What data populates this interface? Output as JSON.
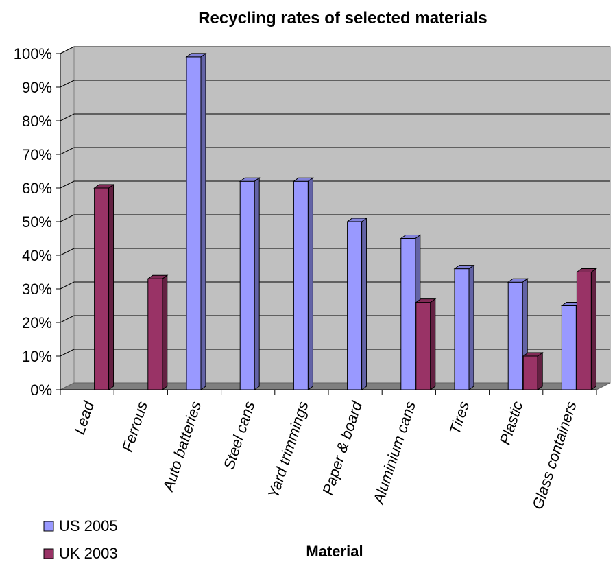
{
  "chart_data": {
    "type": "bar",
    "title": "Recycling rates of selected materials",
    "xlabel": "Material",
    "ylabel": "",
    "ylim": [
      0,
      100
    ],
    "y_ticks": [
      "0%",
      "10%",
      "20%",
      "30%",
      "40%",
      "50%",
      "60%",
      "70%",
      "80%",
      "90%",
      "100%"
    ],
    "grid": true,
    "style": "3d-clustered-column",
    "legend_position": "bottom-left",
    "categories": [
      "Lead",
      "Ferrous",
      "Auto batteries",
      "Steel cans",
      "Yard trimmings",
      "Paper & board",
      "Aluminium cans",
      "Tires",
      "Plastic",
      "Glass containers"
    ],
    "series": [
      {
        "name": "US 2005",
        "color": "#9999ff",
        "values": [
          null,
          null,
          99,
          62,
          62,
          50,
          45,
          36,
          32,
          25
        ]
      },
      {
        "name": "UK 2003",
        "color": "#993366",
        "values": [
          60,
          33,
          null,
          null,
          null,
          null,
          26,
          null,
          10,
          35
        ]
      }
    ]
  }
}
